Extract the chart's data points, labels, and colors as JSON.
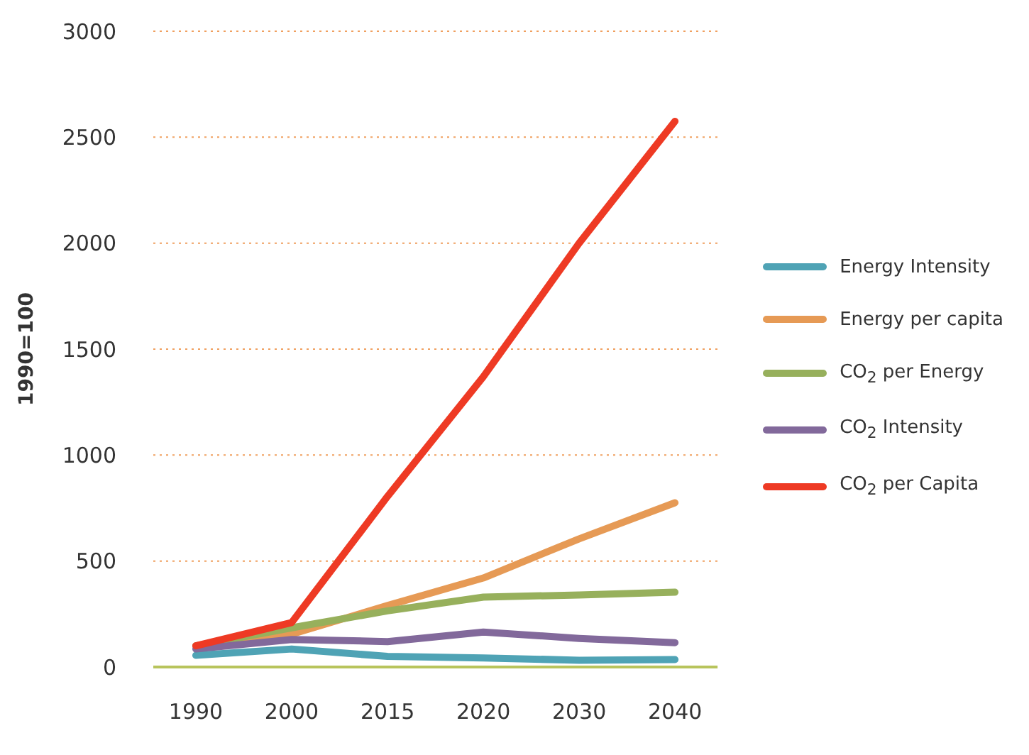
{
  "chart_data": {
    "type": "line",
    "ylabel": "1990=100",
    "categories": [
      "1990",
      "2000",
      "2015",
      "2020",
      "2030",
      "2040"
    ],
    "series": [
      {
        "name": "Energy Intensity",
        "color": "#4fa3b5",
        "values": [
          55,
          85,
          50,
          43,
          32,
          35
        ]
      },
      {
        "name": "Energy per capita",
        "color": "#e69a55",
        "values": [
          100,
          155,
          290,
          420,
          605,
          775
        ]
      },
      {
        "name": "CO$_{2}$ per Energy",
        "color": "#97b05c",
        "values": [
          100,
          185,
          265,
          330,
          340,
          353
        ]
      },
      {
        "name": "CO$_{2}$ Intensity",
        "color": "#82699b",
        "values": [
          85,
          130,
          120,
          165,
          135,
          115
        ]
      },
      {
        "name": "CO$_{2}$ per Capita",
        "color": "#ee3a24",
        "values": [
          100,
          210,
          805,
          1370,
          2000,
          2575
        ]
      }
    ],
    "ylim": [
      0,
      3000
    ],
    "yticks": [
      0,
      500,
      1000,
      1500,
      2000,
      2500,
      3000
    ],
    "grid": "y",
    "legend": "right",
    "marker": "none",
    "line_style": "solid"
  }
}
